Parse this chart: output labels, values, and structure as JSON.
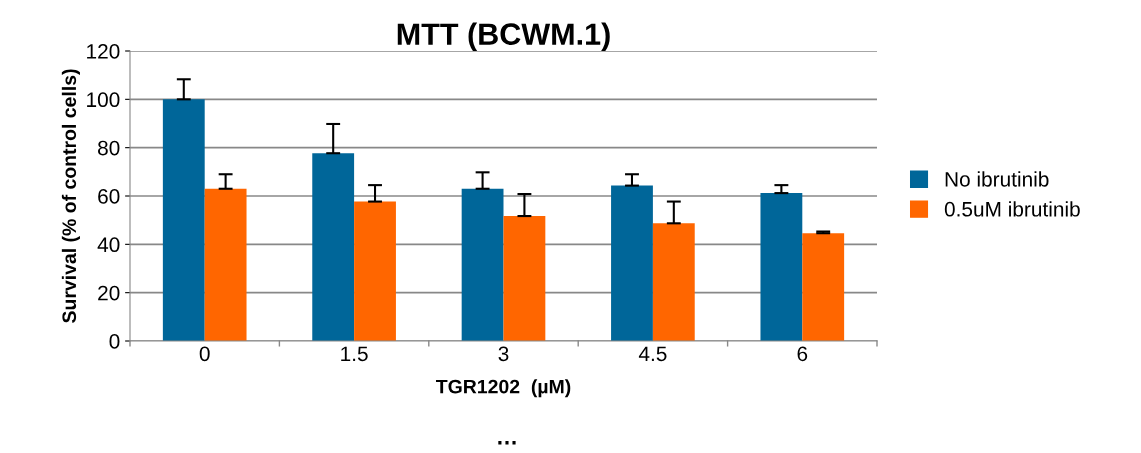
{
  "chart_data": {
    "type": "bar",
    "title": "MTT (BCWM.1)",
    "xlabel": "TGR1202  (µM)",
    "ylabel": "Survival (% of control cells)",
    "categories": [
      "0",
      "1.5",
      "3",
      "4.5",
      "6"
    ],
    "series": [
      {
        "name": "No ibrutinib",
        "color": "#006699",
        "values": [
          100,
          77.7,
          63,
          64.3,
          61.2
        ],
        "errors": [
          [
            100,
            108.3
          ],
          [
            77.7,
            89.8
          ],
          [
            63,
            69.8
          ],
          [
            64.3,
            69
          ],
          [
            61.2,
            64.5
          ]
        ]
      },
      {
        "name": "0.5uM ibrutinib",
        "color": "#ff6600",
        "values": [
          63,
          57.7,
          51.7,
          48.7,
          44.6
        ],
        "errors": [
          [
            63,
            69
          ],
          [
            57.7,
            64.5
          ],
          [
            51.7,
            60.8
          ],
          [
            48.7,
            57.7
          ],
          [
            44.6,
            45.3
          ]
        ]
      }
    ],
    "ylim": [
      0,
      120
    ],
    "yticks": [
      0,
      20,
      40,
      60,
      80,
      100,
      120
    ],
    "grid": "y",
    "legend": "right",
    "annotations": [
      "…"
    ]
  }
}
